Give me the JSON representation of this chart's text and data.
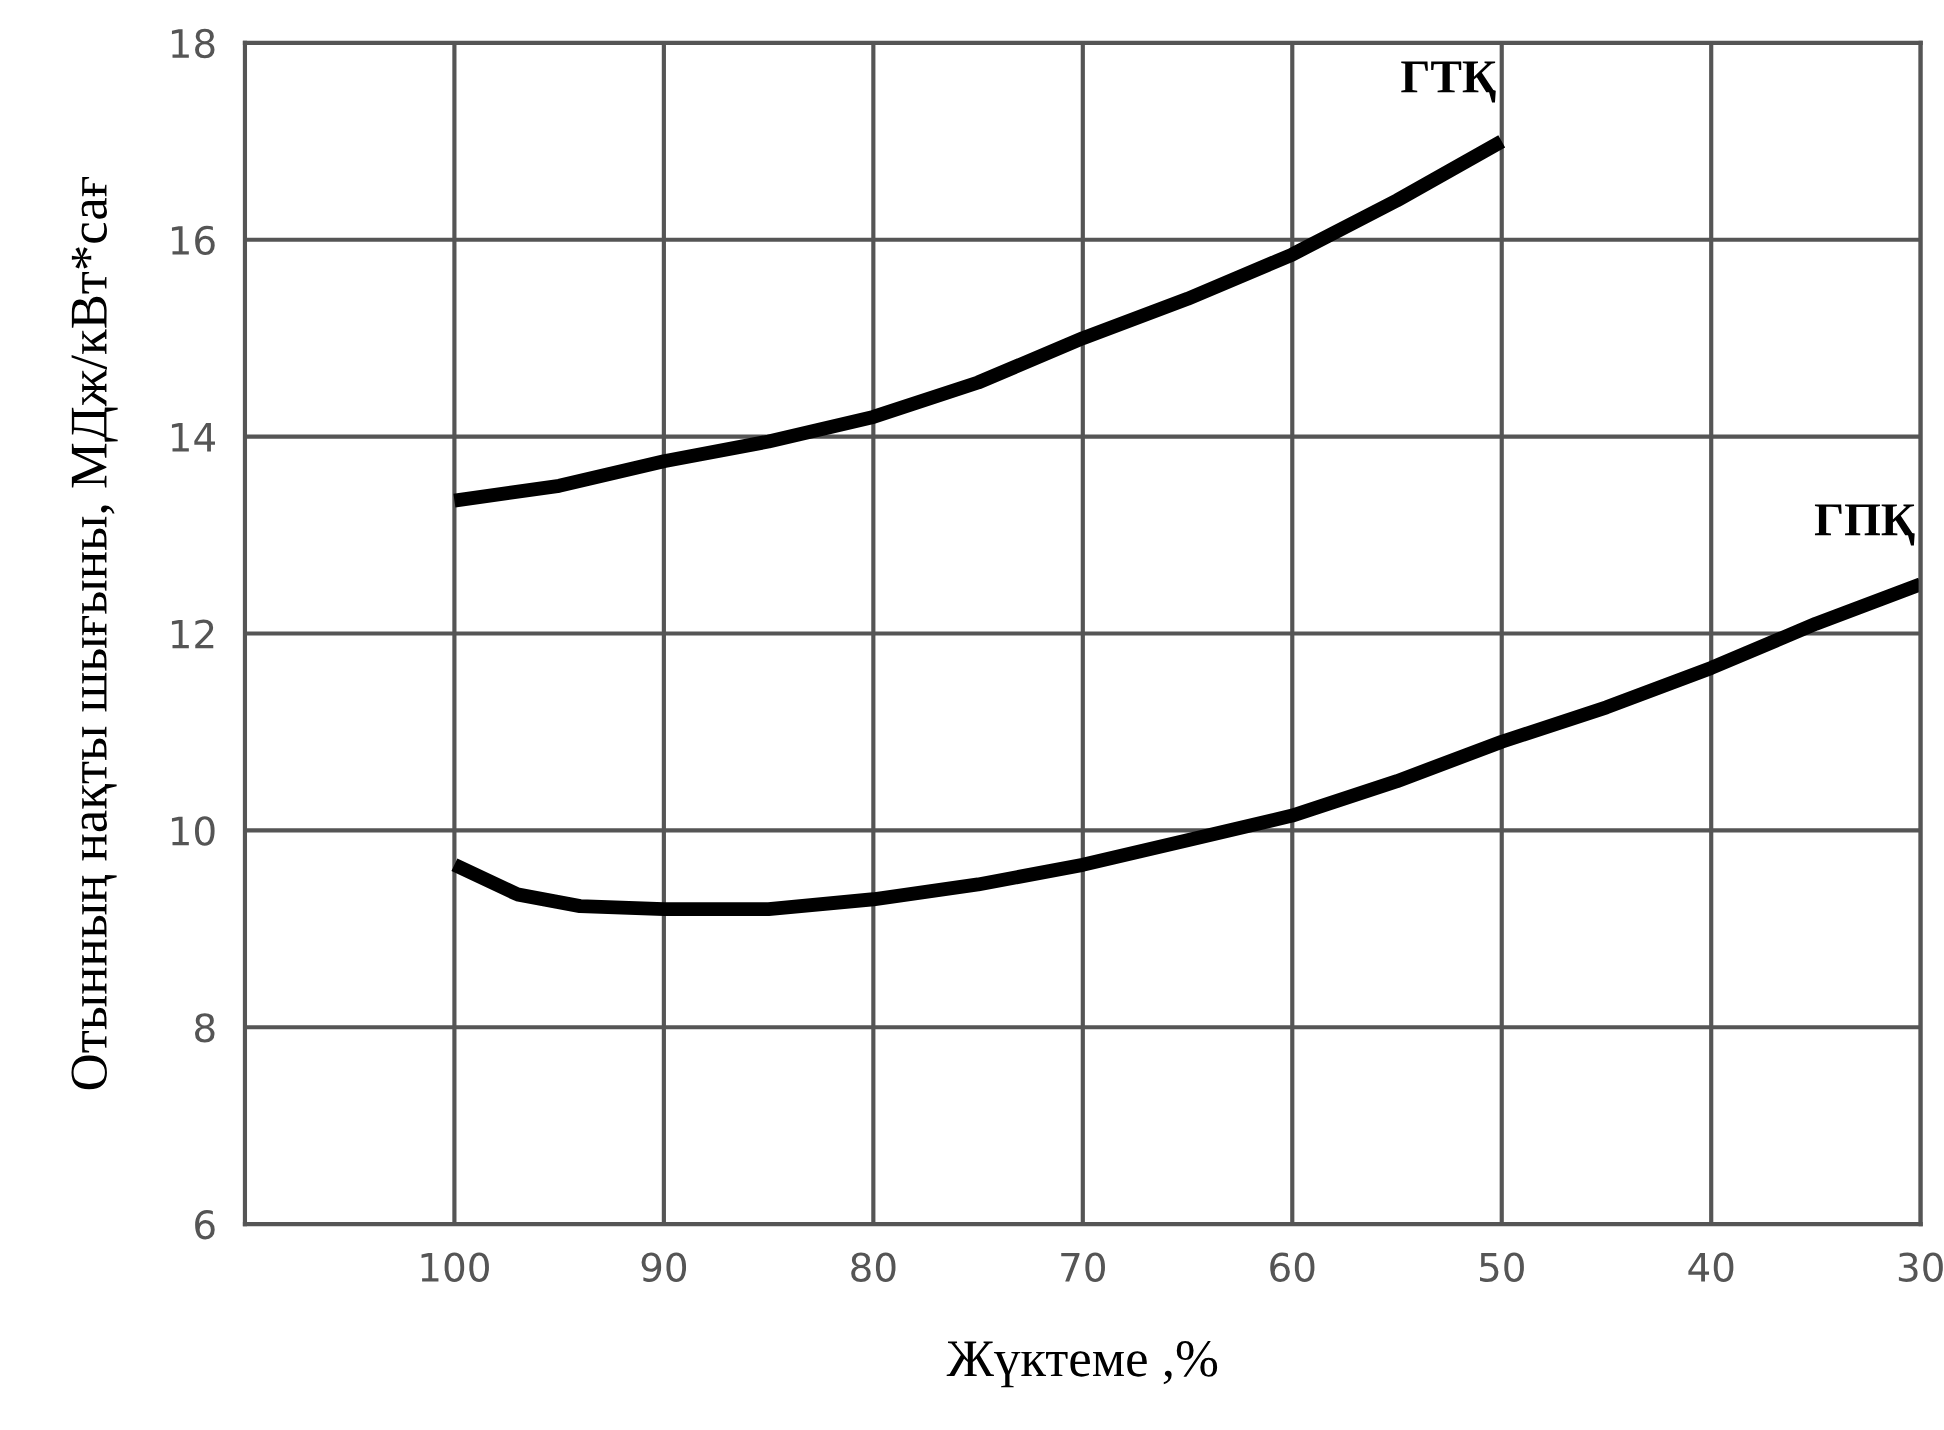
{
  "chart_data": {
    "type": "line",
    "xlabel": "Жүктеме ,%",
    "ylabel": "Отынның нақты шығыны, МДж/кВт*сағ",
    "xlim": [
      110,
      30
    ],
    "xticks": [
      100,
      90,
      80,
      70,
      60,
      50,
      40,
      30
    ],
    "ylim": [
      6,
      18
    ],
    "yticks": [
      6,
      8,
      10,
      12,
      14,
      16,
      18
    ],
    "grid": true,
    "legend": false,
    "series": [
      {
        "name": "ГТҚ",
        "color": "#000000",
        "x": [
          100,
          95,
          90,
          85,
          80,
          75,
          70,
          65,
          60,
          55,
          50
        ],
        "values": [
          13.35,
          13.5,
          13.75,
          13.95,
          14.2,
          14.55,
          15.0,
          15.4,
          15.85,
          16.4,
          17.0
        ]
      },
      {
        "name": "ГПҚ",
        "color": "#000000",
        "x": [
          100,
          97,
          94,
          90,
          85,
          80,
          75,
          70,
          65,
          60,
          55,
          50,
          45,
          40,
          35,
          30
        ],
        "values": [
          9.65,
          9.35,
          9.23,
          9.2,
          9.2,
          9.3,
          9.45,
          9.65,
          9.9,
          10.15,
          10.5,
          10.9,
          11.25,
          11.65,
          12.1,
          12.5
        ]
      }
    ]
  }
}
